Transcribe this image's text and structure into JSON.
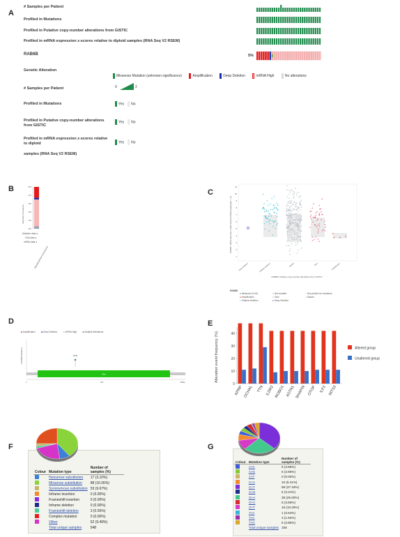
{
  "panels": {
    "a": "A",
    "b": "B",
    "c": "C",
    "d": "D",
    "e": "E",
    "f": "F",
    "g": "G"
  },
  "panelA": {
    "track_labels": [
      "# Samples per Patient",
      "Profiled in Mutations",
      "Profiled in Putative copy-number alterations from GISTIC",
      "Profiled in mRNA expression z-scores relative to diploid samples (RNA Seq V2 RSEM)"
    ],
    "gene": "RAB6B",
    "gene_pct": "5%",
    "legend_genetic_title": "Genetic Alteration",
    "legend_items": [
      "Missense Mutation (unknown significance)",
      "Amplification",
      "Deep Deletion",
      "mRNA High",
      "No alterations"
    ],
    "legend_samples_title": "# Samples per Patient",
    "samples_min": "0",
    "samples_max": "2",
    "legend_prof_mut": "Profiled in Mutations",
    "legend_prof_cna": "Profiled in Putative copy-number alterations from GISTIC",
    "legend_prof_mrna_1": "Profiled in mRNA expression z-scores relative to diploid",
    "legend_prof_mrna_2": "samples (RNA Seq V2 RSEM)",
    "yes": "Yes",
    "no": "No",
    "colors": {
      "track": "#1f8a4c",
      "amp": "#e31a1c",
      "del": "#1a2ea8",
      "mrna_high": "#f7b6b6",
      "missense": "#6dbe45"
    }
  },
  "panelB": {
    "ylabel": "Alteration Frequency",
    "ticks": [
      "5%",
      "4%",
      "3%",
      "2%",
      "1%",
      "0%"
    ],
    "row_labels": [
      "Mutation data",
      "CNA data",
      "mRNA data"
    ],
    "xlabel": "Hepatocellular Carcinoma",
    "chart_data": {
      "type": "bar",
      "categories": [
        "Hepatocellular Carcinoma"
      ],
      "stacks_pct": {
        "amplification": 1.3,
        "deep_deletion": 0.2,
        "mrna_high": 3.2,
        "multiple": 0.3
      },
      "ylim": [
        0,
        5
      ]
    }
  },
  "panelC": {
    "ylabel": "RAB6B: mRNA expression (RNA Seq V2 RSEM) (log2(value + 1))",
    "xlabel": "RAB6B: Putative copy-number alterations from GISTIC",
    "yticks": [
      "11",
      "10",
      "9",
      "8",
      "7",
      "6",
      "5",
      "4",
      "3",
      "2",
      "1"
    ],
    "categories": [
      "Deep Deletion",
      "Shallow Deletion",
      "Diploid",
      "Gain",
      "Amplification"
    ],
    "legend_title": "RAB6B",
    "legend_items": [
      "Missense (VUS)",
      "Not mutated",
      "Not profiled for mutations",
      "Amplification",
      "Gain",
      "Diploid",
      "Shallow Deletion",
      "Deep Deletion"
    ]
  },
  "panelD": {
    "legend_items": [
      "Amplification",
      "Deep Deletion",
      "mRNA High",
      "Multiple Alterations"
    ],
    "ylabel": "# RAB6B Mutations",
    "mutation_label": "R48H",
    "domain_label": "Ras",
    "axis_ticks": [
      "0",
      "100",
      "208aa"
    ]
  },
  "panelE": {
    "ylabel": "Alteration event frequency (%)",
    "legend": [
      "Altered group",
      "Unaltered group"
    ],
    "chart_data": {
      "type": "bar",
      "categories": [
        "KPRP",
        "OCHAL",
        "TTN",
        "ILDR2",
        "ROBO1",
        "ASTN1",
        "SHAPIN",
        "OTOP",
        "ILF2",
        "INTS3"
      ],
      "series": [
        {
          "name": "Altered group",
          "values": [
            48,
            48,
            48,
            42,
            42,
            42,
            42,
            42,
            42,
            42
          ]
        },
        {
          "name": "Unaltered group",
          "values": [
            11,
            12,
            29,
            9,
            10,
            10,
            10,
            11,
            11,
            11
          ]
        }
      ],
      "yticks": [
        0,
        10,
        20,
        30,
        40
      ],
      "ylim": [
        0,
        50
      ],
      "colors": [
        "#e2331c",
        "#3a6fc7"
      ]
    }
  },
  "panelF": {
    "headers": [
      "Colour",
      "Mutation type",
      "Number of samples (%)"
    ],
    "rows": [
      {
        "color": "#3b7fd9",
        "type": "Nonsense substitution",
        "count": "17 (3.10%)",
        "link": true
      },
      {
        "color": "#8bd33b",
        "type": "Missense substitution",
        "count": "88 (16.06%)",
        "link": true
      },
      {
        "color": "#c8b56a",
        "type": "Synonymous substitution",
        "count": "53 (9.67%)",
        "link": true
      },
      {
        "color": "#f28a2e",
        "type": "Inframe insertion",
        "count": "0 (0.00%)",
        "link": false
      },
      {
        "color": "#8a2be2",
        "type": "Frameshift insertion",
        "count": "0 (0.00%)",
        "link": false
      },
      {
        "color": "#1b2c8c",
        "type": "Inframe deletion",
        "count": "0 (0.00%)",
        "link": false
      },
      {
        "color": "#45d19a",
        "type": "Frameshift deletion",
        "count": "3 (0.55%)",
        "link": true
      },
      {
        "color": "#e32020",
        "type": "Complex mutation",
        "count": "0 (0.00%)",
        "link": false
      },
      {
        "color": "#d633c8",
        "type": "Other",
        "count": "52 (9.49%)",
        "link": true
      }
    ],
    "total_label": "Total unique samples",
    "total_value": "548",
    "pie": [
      {
        "color": "#8bd33b",
        "value": 40
      },
      {
        "color": "#3b7fd9",
        "value": 8
      },
      {
        "color": "#d633c8",
        "value": 22
      },
      {
        "color": "#45d19a",
        "value": 2
      },
      {
        "color": "#c8b56a",
        "value": 3
      },
      {
        "color": "#e0501e",
        "value": 25
      }
    ]
  },
  "panelG": {
    "headers": [
      "Colour",
      "Mutation type",
      "Number of samples (%)"
    ],
    "rows": [
      {
        "color": "#3b5fd9",
        "type": "A>C",
        "count": "6 (3.85%)"
      },
      {
        "color": "#86c93a",
        "type": "A>G",
        "count": "6 (3.85%)"
      },
      {
        "color": "#c8b56a",
        "type": "A>T",
        "count": "0 (0.00%)"
      },
      {
        "color": "#f28a2e",
        "type": "C>A",
        "count": "10 (6.41%)"
      },
      {
        "color": "#7b2fd9",
        "type": "C>T",
        "count": "58 (37.18%)"
      },
      {
        "color": "#1c2f8c",
        "type": "C>G",
        "count": "5 (3.21%)"
      },
      {
        "color": "#43c98e",
        "type": "G>A",
        "count": "39 (25.00%)"
      },
      {
        "color": "#d92b2b",
        "type": "G>C",
        "count": "6 (3.85%)"
      },
      {
        "color": "#d63ac8",
        "type": "G>T",
        "count": "16 (10.26%)"
      },
      {
        "color": "#3ab5d9",
        "type": "T>A",
        "count": "1 (0.64%)"
      },
      {
        "color": "#9b2fa8",
        "type": "T>C",
        "count": "3 (1.92%)"
      },
      {
        "color": "#d9a72b",
        "type": "T>G",
        "count": "6 (3.85%)"
      }
    ],
    "total_label": "Total unique samples",
    "total_value": "156",
    "pie": [
      {
        "color": "#7b2fd9",
        "value": 37.18
      },
      {
        "color": "#43c98e",
        "value": 25.0
      },
      {
        "color": "#d63ac8",
        "value": 10.26
      },
      {
        "color": "#f28a2e",
        "value": 6.41
      },
      {
        "color": "#3b5fd9",
        "value": 3.85
      },
      {
        "color": "#86c93a",
        "value": 3.85
      },
      {
        "color": "#1c2f8c",
        "value": 3.21
      },
      {
        "color": "#d92b2b",
        "value": 3.85
      },
      {
        "color": "#3ab5d9",
        "value": 0.64
      },
      {
        "color": "#9b2fa8",
        "value": 1.92
      },
      {
        "color": "#d9a72b",
        "value": 3.85
      }
    ]
  }
}
